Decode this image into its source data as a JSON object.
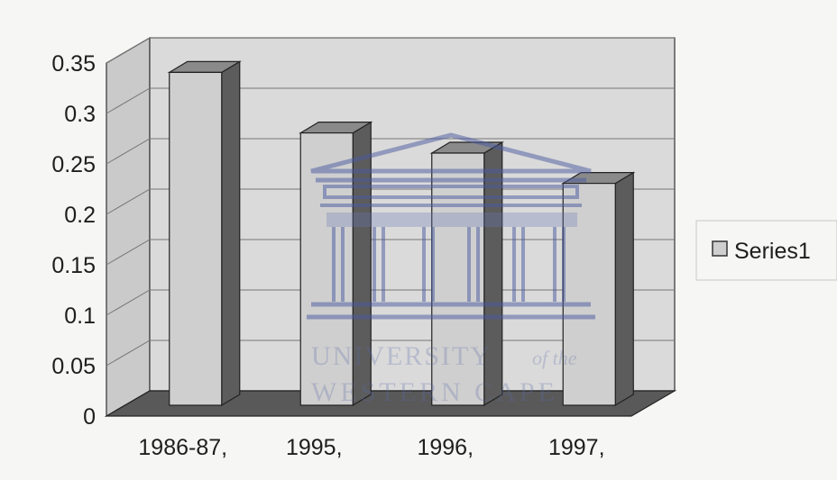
{
  "chart_data": {
    "type": "bar",
    "style": "3d-column",
    "categories": [
      "1986-87,",
      "1995,",
      "1996,",
      "1997,"
    ],
    "series": [
      {
        "name": "Series1",
        "values": [
          0.33,
          0.27,
          0.25,
          0.22
        ]
      }
    ],
    "yticks": [
      "0",
      "0.05",
      "0.1",
      "0.15",
      "0.2",
      "0.25",
      "0.3",
      "0.35"
    ],
    "ylim": [
      0,
      0.35
    ],
    "grid": true,
    "legend": "right",
    "colors": {
      "bar_front": "#cfcfcf",
      "bar_side": "#5c5c5c",
      "bar_top": "#8a8a8a",
      "back_wall": "#dadada",
      "side_wall": "#cacaca",
      "floor": "#595959"
    }
  },
  "watermark": {
    "line1": "UNIVERSITY",
    "line1_suffix": "of the",
    "line2": "WESTERN CAPE"
  }
}
